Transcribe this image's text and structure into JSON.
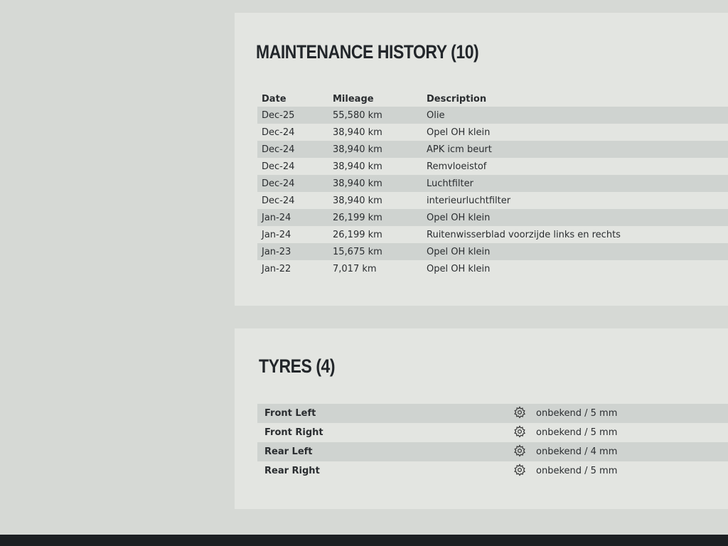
{
  "maintenance": {
    "title": "MAINTENANCE HISTORY (10)",
    "columns": [
      "Date",
      "Mileage",
      "Description"
    ],
    "rows": [
      {
        "date": "Dec-25",
        "mileage": "55,580 km",
        "description": "Olie"
      },
      {
        "date": "Dec-24",
        "mileage": "38,940 km",
        "description": "Opel OH klein"
      },
      {
        "date": "Dec-24",
        "mileage": "38,940 km",
        "description": "APK icm beurt"
      },
      {
        "date": "Dec-24",
        "mileage": "38,940 km",
        "description": "Remvloeistof"
      },
      {
        "date": "Dec-24",
        "mileage": "38,940 km",
        "description": "Luchtfilter"
      },
      {
        "date": "Dec-24",
        "mileage": "38,940 km",
        "description": "interieurluchtfilter"
      },
      {
        "date": "Jan-24",
        "mileage": "26,199 km",
        "description": "Opel OH klein"
      },
      {
        "date": "Jan-24",
        "mileage": "26,199 km",
        "description": "Ruitenwisserblad voorzijde links en rechts"
      },
      {
        "date": "Jan-23",
        "mileage": "15,675 km",
        "description": "Opel OH klein"
      },
      {
        "date": "Jan-22",
        "mileage": "7,017 km",
        "description": "Opel OH klein"
      }
    ]
  },
  "tyres": {
    "title": "TYRES (4)",
    "icon": "tyre-gear-icon",
    "rows": [
      {
        "position": "Front Left",
        "info": "onbekend / 5 mm"
      },
      {
        "position": "Front Right",
        "info": "onbekend / 5 mm"
      },
      {
        "position": "Rear Left",
        "info": "onbekend / 4 mm"
      },
      {
        "position": "Rear Right",
        "info": "onbekend / 5 mm"
      }
    ]
  },
  "colors": {
    "accent": "#3a8a6a"
  }
}
